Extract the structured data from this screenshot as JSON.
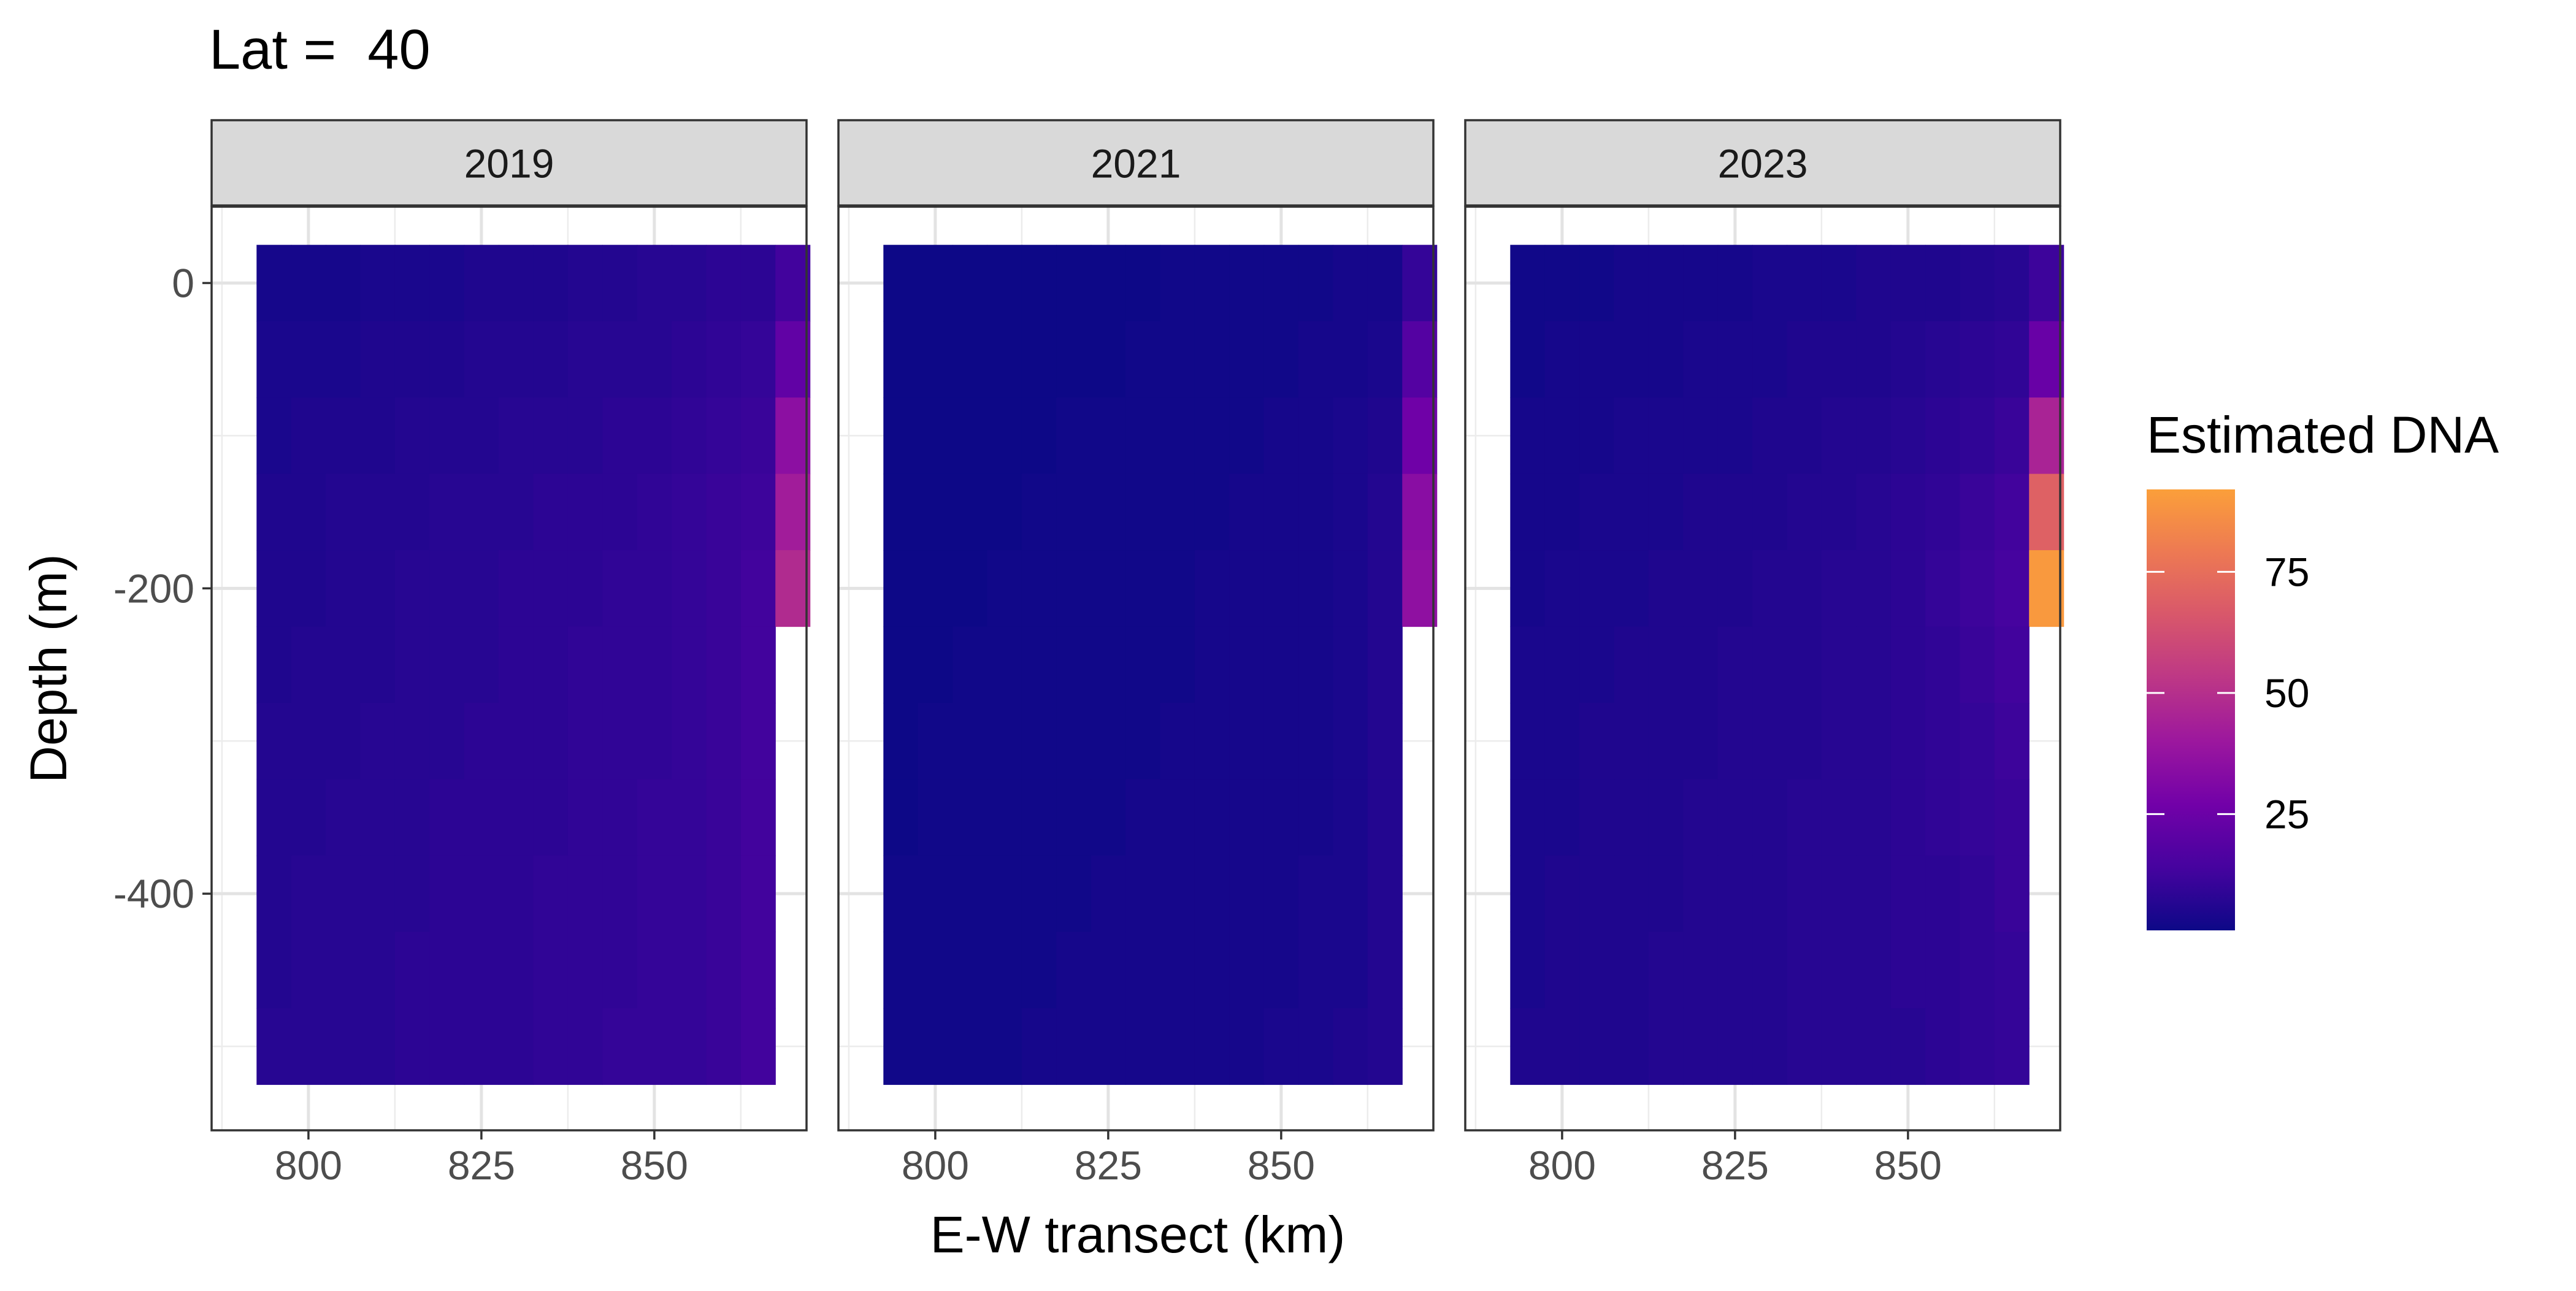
{
  "chart_data": {
    "type": "heatmap",
    "title": "Lat =  40",
    "xlabel": "E-W transect (km)",
    "ylabel": "Depth (m)",
    "legend_title": "Estimated DNA",
    "legend_position": "right",
    "grid": true,
    "x_ticks": [
      800,
      825,
      850
    ],
    "y_ticks": [
      0,
      -200,
      -400
    ],
    "y_tick_labels": [
      "0",
      "-200",
      "-400"
    ],
    "xlim": [
      786,
      872
    ],
    "ylim": [
      -555,
      50
    ],
    "color_scale": {
      "name": "plasma",
      "min": 1,
      "max": 92,
      "ticks": [
        25,
        50,
        75
      ],
      "colors": [
        "#0d0887",
        "#46039f",
        "#7201a8",
        "#9c179e",
        "#bd3786",
        "#d8576b",
        "#ed7953",
        "#fb9f3a"
      ]
    },
    "x": [
      795,
      800,
      805,
      810,
      815,
      820,
      825,
      830,
      835,
      840,
      845,
      850,
      855,
      860,
      865,
      870
    ],
    "depths": [
      0,
      -50,
      -100,
      -150,
      -200,
      -250,
      -300,
      -350,
      -400,
      -450,
      -500
    ],
    "panels": [
      {
        "label": "2019",
        "values": [
          [
            3,
            3,
            3,
            4,
            4,
            4,
            5,
            5,
            5,
            6,
            6,
            7,
            7,
            8,
            8,
            13
          ],
          [
            4,
            4,
            4,
            5,
            5,
            5,
            6,
            6,
            6,
            7,
            7,
            7,
            8,
            9,
            10,
            22
          ],
          [
            4,
            5,
            5,
            5,
            6,
            6,
            6,
            7,
            7,
            7,
            8,
            8,
            9,
            10,
            11,
            35
          ],
          [
            5,
            5,
            6,
            6,
            6,
            7,
            7,
            7,
            8,
            8,
            8,
            9,
            10,
            11,
            12,
            42
          ],
          [
            5,
            5,
            6,
            6,
            7,
            7,
            7,
            8,
            8,
            8,
            9,
            9,
            10,
            11,
            13,
            48
          ],
          [
            5,
            6,
            6,
            6,
            7,
            7,
            7,
            8,
            8,
            9,
            9,
            9,
            10,
            11,
            13,
            null
          ],
          [
            6,
            6,
            6,
            7,
            7,
            7,
            8,
            8,
            8,
            9,
            9,
            9,
            10,
            11,
            13,
            null
          ],
          [
            6,
            6,
            7,
            7,
            7,
            8,
            8,
            8,
            8,
            9,
            9,
            10,
            10,
            11,
            13,
            null
          ],
          [
            6,
            7,
            7,
            7,
            7,
            8,
            8,
            8,
            9,
            9,
            9,
            10,
            10,
            11,
            13,
            null
          ],
          [
            6,
            7,
            7,
            7,
            8,
            8,
            8,
            8,
            9,
            9,
            9,
            10,
            10,
            11,
            13,
            null
          ],
          [
            7,
            7,
            7,
            7,
            8,
            8,
            8,
            8,
            9,
            9,
            10,
            10,
            10,
            11,
            13,
            null
          ]
        ]
      },
      {
        "label": "2021",
        "values": [
          [
            1,
            1,
            1,
            1,
            1,
            1,
            1,
            1,
            2,
            2,
            2,
            2,
            2,
            3,
            3,
            10
          ],
          [
            1,
            1,
            1,
            1,
            1,
            1,
            1,
            2,
            2,
            2,
            2,
            2,
            3,
            3,
            4,
            18
          ],
          [
            1,
            1,
            1,
            1,
            1,
            2,
            2,
            2,
            2,
            2,
            2,
            3,
            3,
            4,
            5,
            26
          ],
          [
            1,
            1,
            1,
            1,
            2,
            2,
            2,
            2,
            2,
            2,
            3,
            3,
            3,
            4,
            6,
            34
          ],
          [
            1,
            1,
            1,
            2,
            2,
            2,
            2,
            2,
            2,
            3,
            3,
            3,
            3,
            4,
            6,
            36
          ],
          [
            1,
            1,
            2,
            2,
            2,
            2,
            2,
            2,
            2,
            3,
            3,
            3,
            3,
            4,
            6,
            null
          ],
          [
            1,
            2,
            2,
            2,
            2,
            2,
            2,
            2,
            3,
            3,
            3,
            3,
            3,
            4,
            6,
            null
          ],
          [
            1,
            2,
            2,
            2,
            2,
            2,
            2,
            3,
            3,
            3,
            3,
            3,
            3,
            4,
            6,
            null
          ],
          [
            2,
            2,
            2,
            2,
            2,
            2,
            3,
            3,
            3,
            3,
            3,
            3,
            4,
            4,
            6,
            null
          ],
          [
            2,
            2,
            2,
            2,
            2,
            3,
            3,
            3,
            3,
            3,
            3,
            3,
            4,
            4,
            6,
            null
          ],
          [
            2,
            2,
            2,
            2,
            3,
            3,
            3,
            3,
            3,
            3,
            3,
            4,
            4,
            5,
            6,
            null
          ]
        ]
      },
      {
        "label": "2023",
        "values": [
          [
            2,
            2,
            2,
            3,
            3,
            3,
            3,
            4,
            4,
            4,
            5,
            5,
            5,
            6,
            7,
            12
          ],
          [
            2,
            3,
            3,
            3,
            3,
            4,
            4,
            4,
            5,
            5,
            5,
            6,
            7,
            8,
            9,
            24
          ],
          [
            3,
            3,
            3,
            4,
            4,
            4,
            4,
            5,
            5,
            6,
            6,
            7,
            8,
            9,
            11,
            45
          ],
          [
            3,
            3,
            4,
            4,
            4,
            5,
            5,
            5,
            6,
            6,
            7,
            8,
            9,
            11,
            13,
            70
          ],
          [
            3,
            4,
            4,
            4,
            5,
            5,
            5,
            6,
            6,
            7,
            7,
            8,
            10,
            12,
            14,
            90
          ],
          [
            4,
            4,
            4,
            5,
            5,
            5,
            6,
            6,
            6,
            7,
            7,
            8,
            9,
            11,
            13,
            null
          ],
          [
            4,
            4,
            5,
            5,
            5,
            5,
            6,
            6,
            6,
            7,
            7,
            8,
            9,
            10,
            12,
            null
          ],
          [
            4,
            4,
            5,
            5,
            5,
            6,
            6,
            6,
            7,
            7,
            7,
            8,
            9,
            10,
            11,
            null
          ],
          [
            4,
            5,
            5,
            5,
            5,
            6,
            6,
            6,
            7,
            7,
            7,
            8,
            8,
            9,
            11,
            null
          ],
          [
            4,
            5,
            5,
            5,
            6,
            6,
            6,
            6,
            7,
            7,
            7,
            8,
            8,
            9,
            10,
            null
          ],
          [
            5,
            5,
            5,
            5,
            6,
            6,
            6,
            6,
            7,
            7,
            7,
            7,
            8,
            9,
            10,
            null
          ]
        ]
      }
    ]
  }
}
